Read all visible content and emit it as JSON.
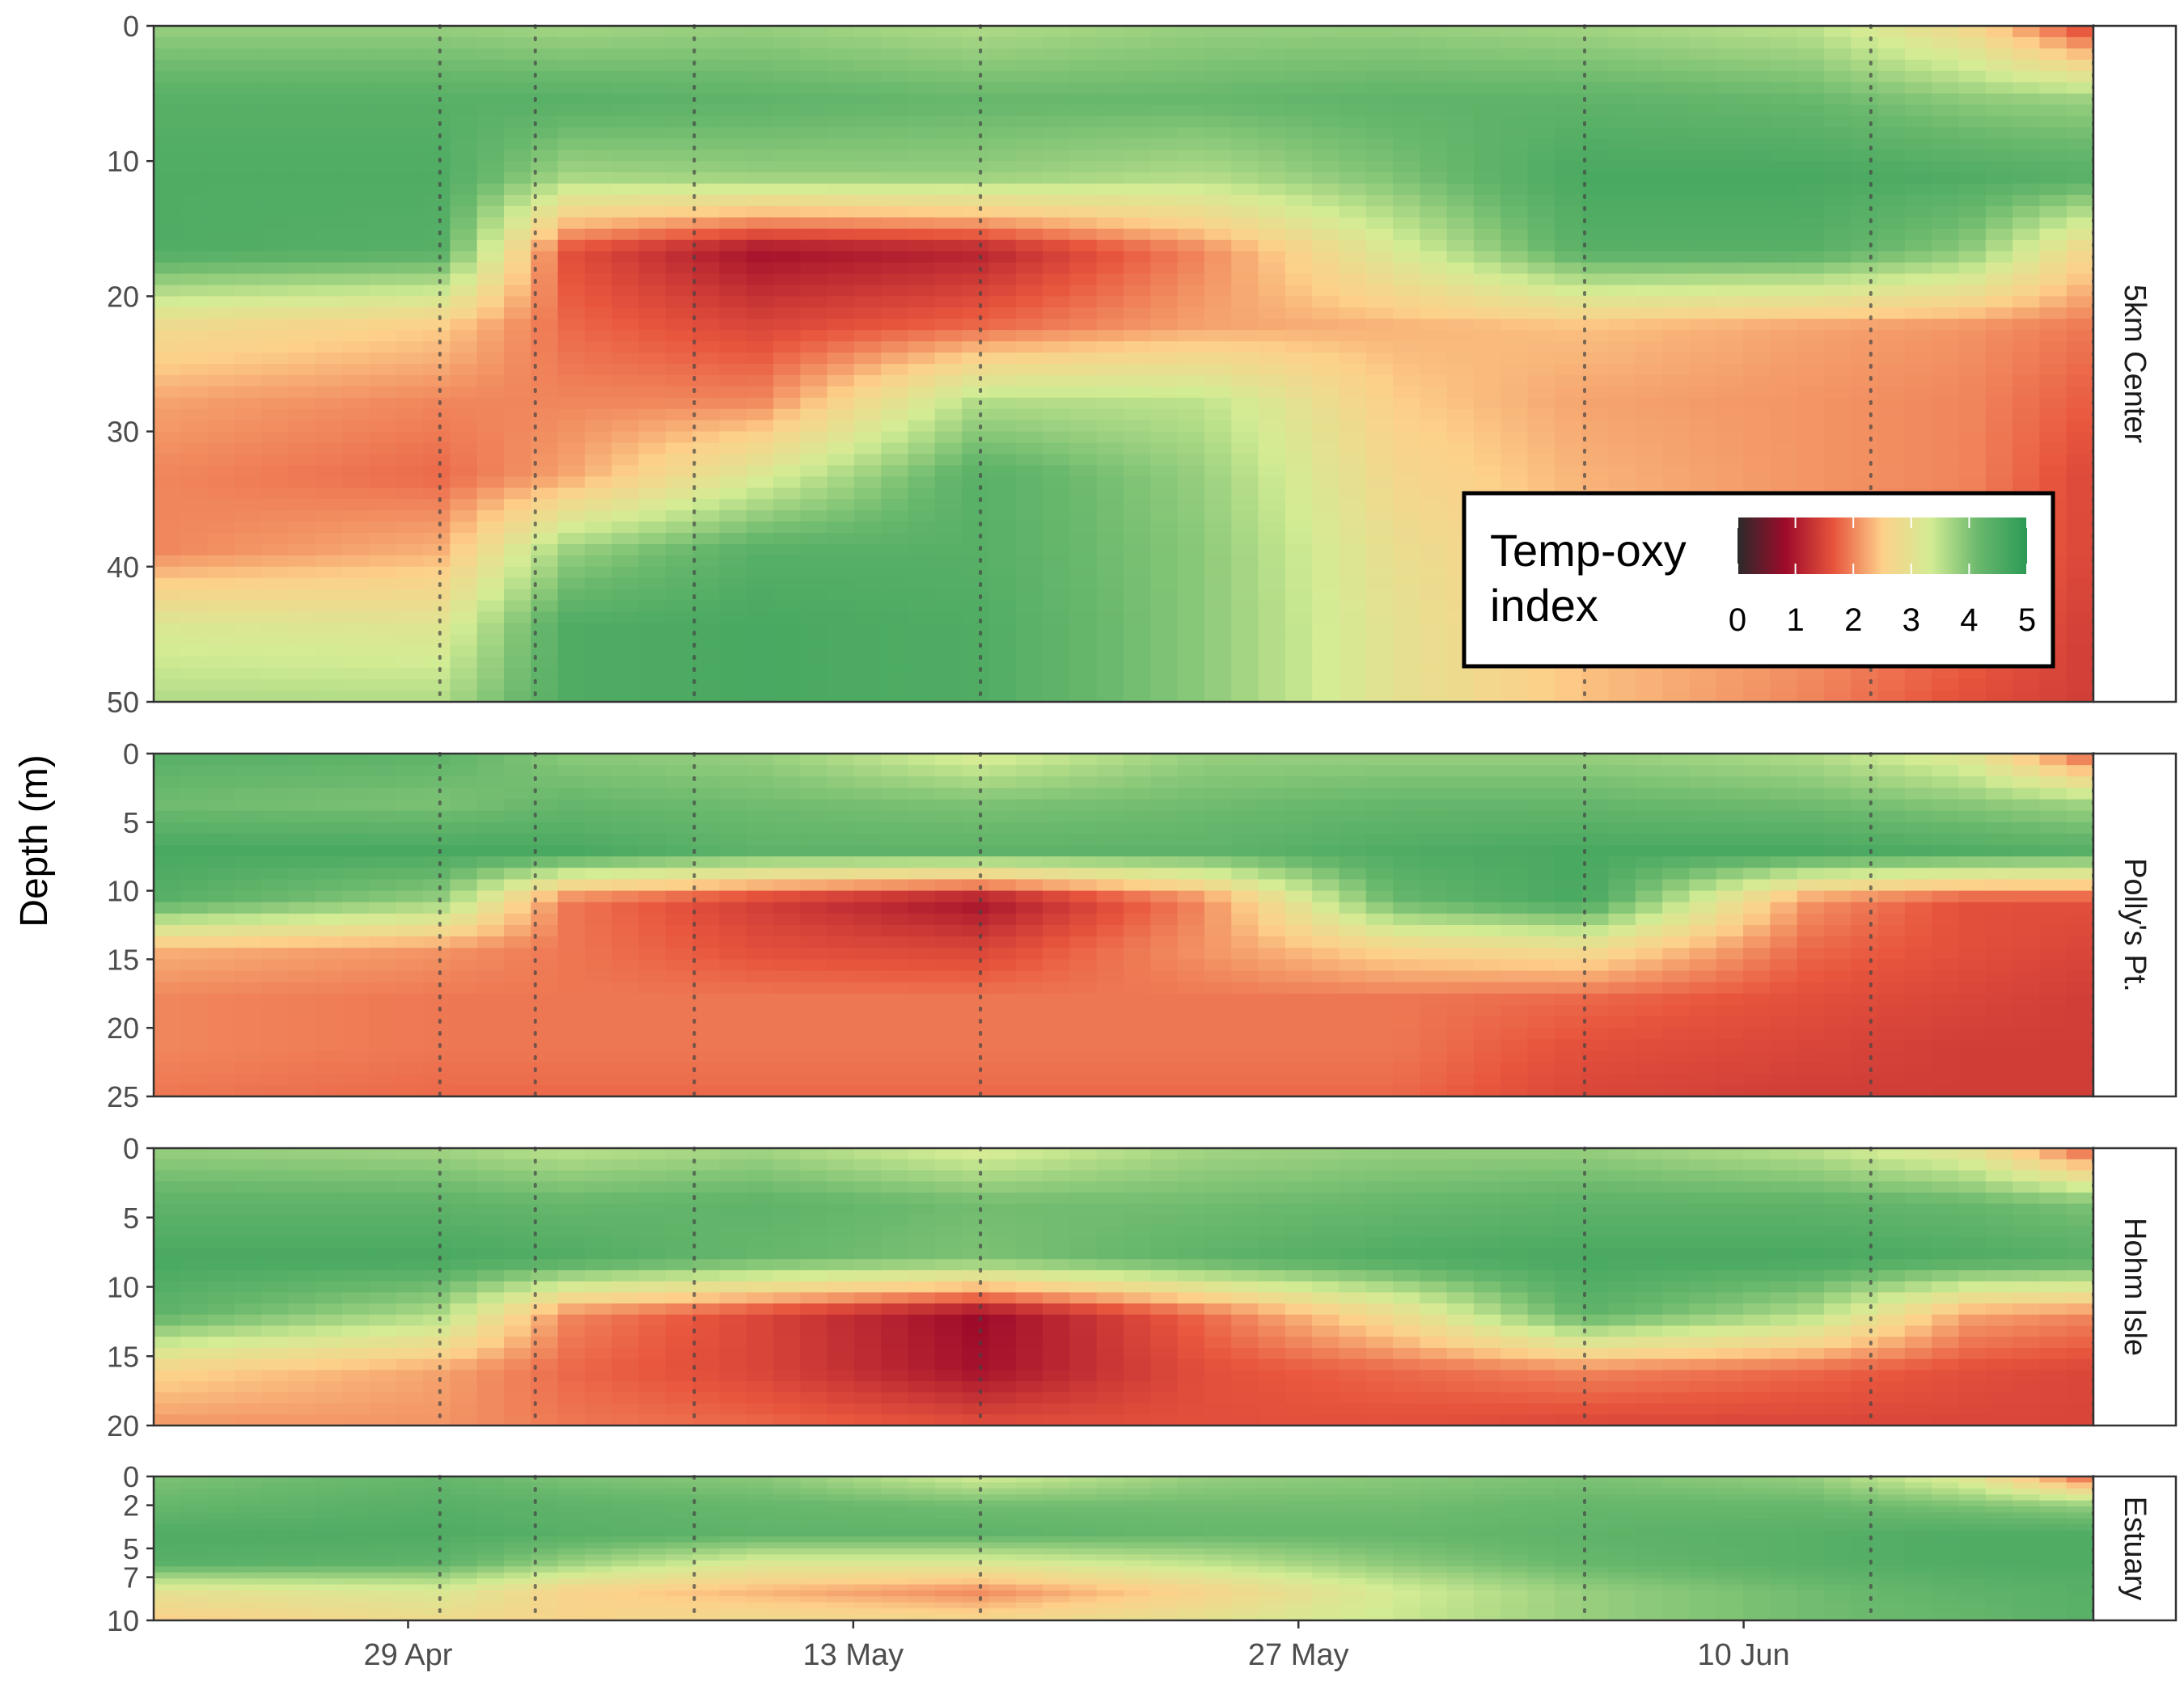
{
  "colors": {
    "scale": [
      "#2a2a2a",
      "#9e0b2a",
      "#e8553d",
      "#fdd08a",
      "#d3ec94",
      "#69b86d",
      "#2b9a55"
    ],
    "panel_border": "#333333",
    "strip_bg": "#ffffff",
    "contour": "#555555",
    "sampling_line": "#444444"
  },
  "chart_data": {
    "type": "heatmap",
    "ylabel": "Depth (m)",
    "xlabel": "",
    "x_ticks": [
      "29 Apr",
      "13 May",
      "27 May",
      "10 Jun"
    ],
    "x_range": [
      "2024-04-21",
      "2024-06-21"
    ],
    "sampling_dates": [
      "2024-04-30",
      "2024-05-03",
      "2024-05-08",
      "2024-05-17",
      "2024-06-05",
      "2024-06-14",
      "2024-06-21"
    ],
    "legend": {
      "title_line1": "Temp-oxy",
      "title_line2": "index",
      "ticks": [
        "0",
        "1",
        "2",
        "3",
        "4",
        "5"
      ],
      "range": [
        0,
        5
      ],
      "position": "inside bottom-right of top panel"
    },
    "panels": [
      {
        "name": "5km Center",
        "y_range": [
          0,
          50
        ],
        "y_ticks": [
          "0",
          "10",
          "20",
          "30",
          "40",
          "50"
        ],
        "y_tick_values": [
          0,
          10,
          20,
          30,
          40,
          50
        ],
        "profiles": [
          {
            "date": "2024-04-21",
            "index": [
              3.8,
              4.4,
              4.5,
              4.5,
              2.8,
              2.2,
              2.0,
              2.0,
              3.2,
              3.6
            ]
          },
          {
            "date": "2024-04-30",
            "index": [
              3.8,
              4.4,
              4.5,
              4.4,
              2.5,
              2.0,
              1.8,
              2.3,
              3.1,
              3.6
            ]
          },
          {
            "date": "2024-05-04",
            "index": [
              3.7,
              4.4,
              3.7,
              1.6,
              1.8,
              2.0,
              2.2,
              3.8,
              4.5,
              4.5
            ]
          },
          {
            "date": "2024-05-10",
            "index": [
              3.8,
              4.3,
              3.8,
              0.9,
              1.5,
              2.0,
              3.2,
              4.4,
              4.6,
              4.6
            ]
          },
          {
            "date": "2024-05-17",
            "index": [
              3.6,
              4.2,
              3.8,
              1.1,
              1.8,
              3.6,
              4.4,
              4.4,
              4.5,
              4.5
            ]
          },
          {
            "date": "2024-05-24",
            "index": [
              3.8,
              4.2,
              3.6,
              2.0,
              2.2,
              3.5,
              3.8,
              3.9,
              3.9,
              3.9
            ]
          },
          {
            "date": "2024-05-30",
            "index": [
              3.8,
              4.3,
              4.0,
              3.2,
              2.3,
              2.5,
              2.7,
              2.9,
              3.0,
              3.0
            ]
          },
          {
            "date": "2024-06-05",
            "index": [
              3.7,
              4.3,
              4.6,
              4.4,
              2.4,
              2.2,
              2.3,
              2.4,
              2.4,
              2.4
            ]
          },
          {
            "date": "2024-06-12",
            "index": [
              3.5,
              4.2,
              4.6,
              4.4,
              2.2,
              2.1,
              2.1,
              2.1,
              2.1,
              2.0
            ]
          },
          {
            "date": "2024-06-17",
            "index": [
              2.7,
              3.9,
              4.5,
              3.9,
              2.1,
              2.0,
              2.0,
              1.9,
              1.8,
              1.6
            ]
          },
          {
            "date": "2024-06-21",
            "index": [
              1.4,
              3.8,
              4.4,
              2.6,
              1.9,
              1.7,
              1.5,
              1.5,
              1.4,
              1.4
            ]
          }
        ]
      },
      {
        "name": "Polly's Pt.",
        "y_range": [
          0,
          25
        ],
        "y_ticks": [
          "0",
          "5",
          "10",
          "15",
          "20",
          "25"
        ],
        "y_tick_values": [
          0,
          5,
          10,
          15,
          20,
          25
        ],
        "profiles": [
          {
            "date": "2024-04-21",
            "index": [
              4.4,
              4.1,
              4.6,
              4.4,
              2.3,
              2.0,
              2.0,
              1.9
            ]
          },
          {
            "date": "2024-04-30",
            "index": [
              4.3,
              4.0,
              4.6,
              3.8,
              2.1,
              1.9,
              1.9,
              1.8
            ]
          },
          {
            "date": "2024-05-04",
            "index": [
              3.9,
              4.2,
              4.6,
              1.9,
              1.9,
              1.9,
              1.9,
              1.8
            ]
          },
          {
            "date": "2024-05-10",
            "index": [
              3.8,
              4.1,
              4.3,
              1.4,
              1.6,
              1.9,
              1.9,
              1.8
            ]
          },
          {
            "date": "2024-05-17",
            "index": [
              3.2,
              4.0,
              4.3,
              0.9,
              1.5,
              1.9,
              1.9,
              1.8
            ]
          },
          {
            "date": "2024-05-24",
            "index": [
              3.8,
              4.1,
              4.3,
              2.0,
              2.1,
              1.9,
              1.9,
              1.8
            ]
          },
          {
            "date": "2024-05-30",
            "index": [
              3.8,
              4.2,
              4.5,
              4.2,
              2.6,
              1.9,
              1.9,
              1.8
            ]
          },
          {
            "date": "2024-06-05",
            "index": [
              3.8,
              4.2,
              4.6,
              4.6,
              2.8,
              1.8,
              1.6,
              1.5
            ]
          },
          {
            "date": "2024-06-12",
            "index": [
              3.6,
              4.1,
              4.6,
              2.1,
              1.8,
              1.6,
              1.5,
              1.4
            ]
          },
          {
            "date": "2024-06-17",
            "index": [
              3.1,
              3.9,
              4.5,
              1.6,
              1.6,
              1.5,
              1.4,
              1.4
            ]
          },
          {
            "date": "2024-06-21",
            "index": [
              1.6,
              3.7,
              4.4,
              1.6,
              1.5,
              1.4,
              1.4,
              1.4
            ]
          }
        ]
      },
      {
        "name": "Hohm Isle",
        "y_range": [
          0,
          20
        ],
        "y_ticks": [
          "0",
          "5",
          "10",
          "15",
          "20"
        ],
        "y_tick_values": [
          0,
          5,
          10,
          15,
          20
        ],
        "profiles": [
          {
            "date": "2024-04-21",
            "index": [
              3.8,
              4.3,
              4.6,
              4.3,
              2.6,
              2.1
            ]
          },
          {
            "date": "2024-04-30",
            "index": [
              3.7,
              4.3,
              4.6,
              3.6,
              2.2,
              2.1
            ]
          },
          {
            "date": "2024-05-04",
            "index": [
              3.5,
              4.2,
              4.5,
              2.0,
              1.8,
              1.9
            ]
          },
          {
            "date": "2024-05-10",
            "index": [
              3.7,
              4.3,
              4.2,
              1.5,
              1.5,
              1.8
            ]
          },
          {
            "date": "2024-05-17",
            "index": [
              3.2,
              4.1,
              4.0,
              0.8,
              0.9,
              1.6
            ]
          },
          {
            "date": "2024-05-24",
            "index": [
              3.7,
              4.1,
              4.3,
              1.8,
              1.6,
              1.6
            ]
          },
          {
            "date": "2024-05-30",
            "index": [
              3.8,
              4.2,
              4.5,
              2.8,
              1.8,
              1.6
            ]
          },
          {
            "date": "2024-06-05",
            "index": [
              3.8,
              4.3,
              4.6,
              4.3,
              2.0,
              1.5
            ]
          },
          {
            "date": "2024-06-12",
            "index": [
              3.5,
              4.3,
              4.6,
              3.6,
              1.8,
              1.5
            ]
          },
          {
            "date": "2024-06-17",
            "index": [
              3.0,
              4.2,
              4.5,
              2.2,
              1.6,
              1.5
            ]
          },
          {
            "date": "2024-06-21",
            "index": [
              1.6,
              4.0,
              4.4,
              2.0,
              1.5,
              1.5
            ]
          }
        ]
      },
      {
        "name": "Estuary",
        "y_range": [
          0,
          10
        ],
        "y_ticks": [
          "0",
          "2",
          "5",
          "7",
          "10"
        ],
        "y_tick_values": [
          0,
          2,
          5,
          7,
          10
        ],
        "profiles": [
          {
            "date": "2024-04-21",
            "index": [
              4.0,
              4.2,
              4.5,
              4.4,
              3.0,
              2.5
            ]
          },
          {
            "date": "2024-04-30",
            "index": [
              4.2,
              4.4,
              4.5,
              4.3,
              3.2,
              2.8
            ]
          },
          {
            "date": "2024-05-04",
            "index": [
              4.0,
              4.3,
              4.4,
              3.8,
              2.6,
              2.6
            ]
          },
          {
            "date": "2024-05-10",
            "index": [
              3.9,
              4.2,
              4.3,
              3.2,
              2.3,
              2.8
            ]
          },
          {
            "date": "2024-05-17",
            "index": [
              3.3,
              4.1,
              4.3,
              3.2,
              2.0,
              2.7
            ]
          },
          {
            "date": "2024-05-24",
            "index": [
              3.8,
              4.1,
              4.2,
              3.5,
              2.6,
              3.0
            ]
          },
          {
            "date": "2024-05-30",
            "index": [
              3.9,
              4.1,
              4.2,
              3.9,
              3.3,
              3.4
            ]
          },
          {
            "date": "2024-06-05",
            "index": [
              4.0,
              4.2,
              4.3,
              4.2,
              3.8,
              3.8
            ]
          },
          {
            "date": "2024-06-12",
            "index": [
              3.8,
              4.2,
              4.4,
              4.4,
              4.1,
              4.1
            ]
          },
          {
            "date": "2024-06-17",
            "index": [
              3.1,
              4.0,
              4.5,
              4.5,
              4.3,
              4.2
            ]
          },
          {
            "date": "2024-06-21",
            "index": [
              1.6,
              3.8,
              4.5,
              4.5,
              4.4,
              4.4
            ]
          }
        ]
      }
    ]
  }
}
